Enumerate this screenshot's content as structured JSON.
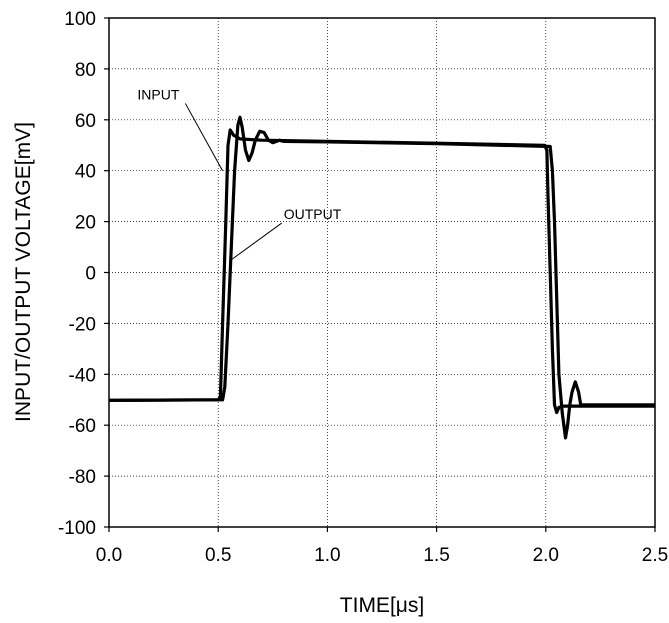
{
  "chart_data": {
    "type": "line",
    "xlabel": "TIME[μs]",
    "ylabel": "INPUT/OUTPUT VOLTAGE[mV]",
    "xlim": [
      0.0,
      2.5
    ],
    "ylim": [
      -100,
      100
    ],
    "grid": true,
    "x_ticks": [
      0.0,
      0.5,
      1.0,
      1.5,
      2.0,
      2.5
    ],
    "x_tick_labels": [
      "0.0",
      "0.5",
      "1.0",
      "1.5",
      "2.0",
      "2.5"
    ],
    "y_ticks": [
      -100,
      -80,
      -60,
      -40,
      -20,
      0,
      20,
      40,
      60,
      80,
      100
    ],
    "y_tick_labels": [
      "-100",
      "-80",
      "-60",
      "-40",
      "-20",
      "0",
      "20",
      "40",
      "60",
      "80",
      "100"
    ],
    "series": [
      {
        "name": "INPUT",
        "points": [
          [
            0.0,
            -50.2
          ],
          [
            0.5,
            -50.0
          ],
          [
            0.51,
            -49.0
          ],
          [
            0.52,
            -20.0
          ],
          [
            0.535,
            20.0
          ],
          [
            0.545,
            50.0
          ],
          [
            0.555,
            56.0
          ],
          [
            0.57,
            54.0
          ],
          [
            0.6,
            52.5
          ],
          [
            0.7,
            52.0
          ],
          [
            1.0,
            51.5
          ],
          [
            1.5,
            50.8
          ],
          [
            1.995,
            50.0
          ],
          [
            2.005,
            48.0
          ],
          [
            2.01,
            30.0
          ],
          [
            2.02,
            0.0
          ],
          [
            2.03,
            -30.0
          ],
          [
            2.04,
            -52.0
          ],
          [
            2.05,
            -55.0
          ],
          [
            2.06,
            -53.0
          ],
          [
            2.08,
            -52.5
          ],
          [
            2.5,
            -52.5
          ]
        ]
      },
      {
        "name": "OUTPUT",
        "points": [
          [
            0.0,
            -50.2
          ],
          [
            0.51,
            -50.0
          ],
          [
            0.52,
            -50.0
          ],
          [
            0.53,
            -45.0
          ],
          [
            0.545,
            -20.0
          ],
          [
            0.56,
            10.0
          ],
          [
            0.575,
            40.0
          ],
          [
            0.59,
            58.0
          ],
          [
            0.6,
            61.0
          ],
          [
            0.61,
            57.0
          ],
          [
            0.625,
            48.0
          ],
          [
            0.64,
            44.0
          ],
          [
            0.655,
            47.0
          ],
          [
            0.67,
            52.0
          ],
          [
            0.69,
            55.5
          ],
          [
            0.71,
            55.0
          ],
          [
            0.73,
            52.0
          ],
          [
            0.75,
            51.0
          ],
          [
            0.78,
            52.0
          ],
          [
            0.8,
            51.5
          ],
          [
            1.0,
            51.3
          ],
          [
            1.5,
            50.6
          ],
          [
            2.02,
            49.5
          ],
          [
            2.03,
            40.0
          ],
          [
            2.04,
            20.0
          ],
          [
            2.05,
            -10.0
          ],
          [
            2.06,
            -40.0
          ],
          [
            2.075,
            -55.0
          ],
          [
            2.09,
            -65.0
          ],
          [
            2.1,
            -60.0
          ],
          [
            2.11,
            -52.0
          ],
          [
            2.12,
            -47.0
          ],
          [
            2.135,
            -43.0
          ],
          [
            2.15,
            -47.0
          ],
          [
            2.16,
            -52.0
          ],
          [
            2.5,
            -52.0
          ]
        ]
      }
    ],
    "annotations": [
      {
        "text": "INPUT",
        "label_at": [
          0.13,
          68.0
        ],
        "points_to": [
          0.52,
          40.0
        ]
      },
      {
        "text": "OUTPUT",
        "label_at": [
          0.8,
          21.0
        ],
        "points_to": [
          0.56,
          5.0
        ]
      }
    ]
  }
}
